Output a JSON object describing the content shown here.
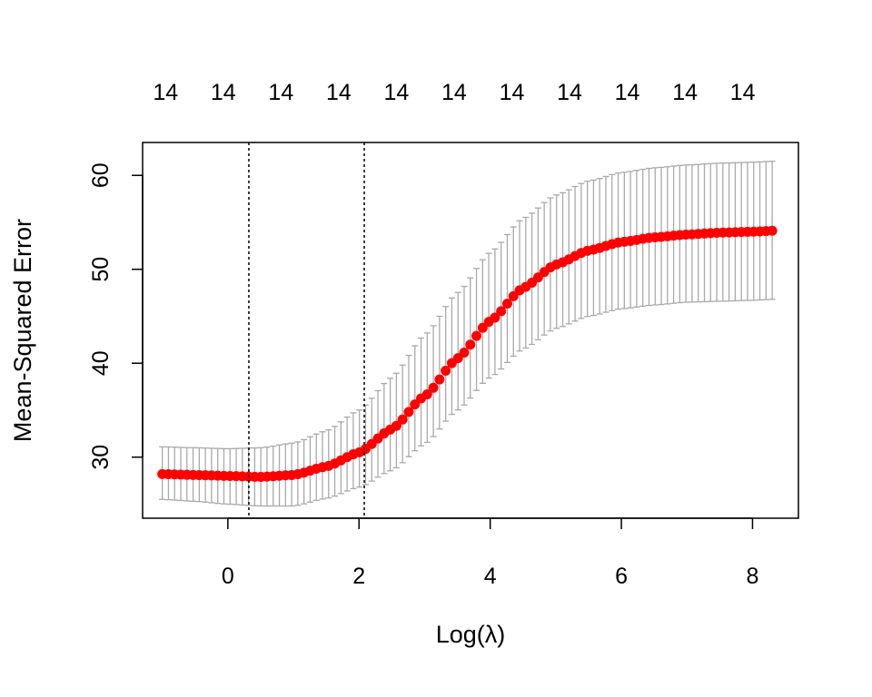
{
  "chart_data": {
    "type": "line",
    "title": "",
    "xlabel": "Log(λ)",
    "ylabel": "Mean-Squared Error",
    "xlim": [
      -1.3,
      8.7
    ],
    "ylim": [
      23.5,
      63.5
    ],
    "x_ticks": [
      0,
      2,
      4,
      6,
      8
    ],
    "y_ticks": [
      30,
      40,
      50,
      60
    ],
    "x_tick_labels": [
      "0",
      "2",
      "4",
      "6",
      "8"
    ],
    "y_tick_labels": [
      "30",
      "40",
      "50",
      "60"
    ],
    "top_axis": {
      "positions": [
        -0.95,
        -0.07,
        0.81,
        1.69,
        2.57,
        3.45,
        4.33,
        5.21,
        6.09,
        6.97,
        7.85
      ],
      "labels": [
        "14",
        "14",
        "14",
        "14",
        "14",
        "14",
        "14",
        "14",
        "14",
        "14",
        "14"
      ]
    },
    "vlines": [
      0.32,
      2.08
    ],
    "legend": "none",
    "grid": false,
    "series": [
      {
        "style": "points-with-error-bars",
        "color": "#ff0000",
        "errorbar_color": "#a9a9a9",
        "x": [
          -1.0,
          -0.5,
          0.0,
          0.5,
          1.0,
          1.5,
          2.0,
          2.5,
          3.0,
          3.5,
          4.0,
          4.5,
          5.0,
          5.5,
          6.0,
          6.5,
          7.0,
          7.5,
          8.0,
          8.3
        ],
        "y": [
          28.2,
          28.1,
          28.0,
          27.9,
          28.1,
          29.0,
          30.5,
          33.0,
          36.5,
          40.5,
          44.5,
          48.0,
          50.5,
          52.0,
          52.9,
          53.4,
          53.7,
          53.9,
          54.0,
          54.1
        ],
        "upper": [
          31.1,
          31.0,
          30.9,
          31.0,
          31.5,
          32.8,
          35.0,
          38.5,
          43.0,
          47.5,
          51.8,
          55.4,
          57.9,
          59.4,
          60.3,
          60.8,
          61.1,
          61.3,
          61.4,
          61.5
        ],
        "lower": [
          25.5,
          25.3,
          25.0,
          24.8,
          24.8,
          25.6,
          26.8,
          28.6,
          31.4,
          35.0,
          38.5,
          41.5,
          43.7,
          45.0,
          45.8,
          46.2,
          46.5,
          46.6,
          46.7,
          46.8
        ]
      }
    ]
  }
}
